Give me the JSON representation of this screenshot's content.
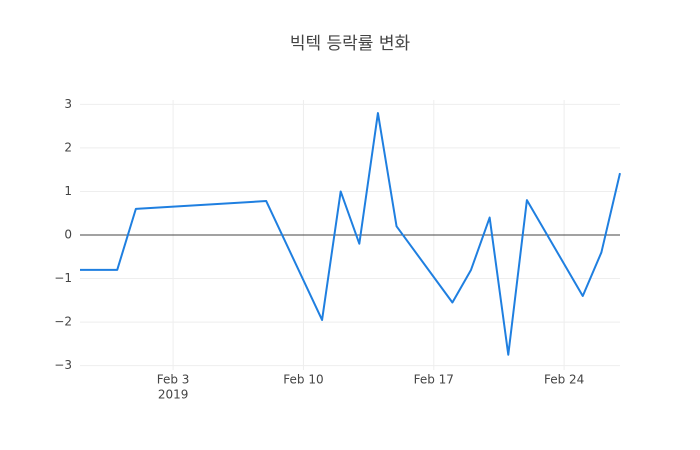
{
  "chart_data": {
    "type": "line",
    "title": "빅텍 등락률 변화",
    "x": [
      "2019-01-29",
      "2019-01-31",
      "2019-02-01",
      "2019-02-08",
      "2019-02-11",
      "2019-02-12",
      "2019-02-13",
      "2019-02-14",
      "2019-02-15",
      "2019-02-18",
      "2019-02-19",
      "2019-02-20",
      "2019-02-21",
      "2019-02-22",
      "2019-02-25",
      "2019-02-26",
      "2019-02-27"
    ],
    "values": [
      -0.8,
      -0.8,
      0.6,
      0.78,
      -1.95,
      1.0,
      -0.2,
      2.8,
      0.2,
      -1.55,
      -0.8,
      0.4,
      -2.75,
      0.8,
      -1.4,
      -0.4,
      1.42
    ],
    "color": "#1f7fe0",
    "xlim": [
      "2019-01-29",
      "2019-02-27"
    ],
    "xticks": [
      {
        "value": "2019-02-03",
        "label": "Feb 3"
      },
      {
        "value": "2019-02-10",
        "label": "Feb 10"
      },
      {
        "value": "2019-02-17",
        "label": "Feb 17"
      },
      {
        "value": "2019-02-24",
        "label": "Feb 24"
      }
    ],
    "x_year_label": "2019",
    "ylim": [
      -3.1,
      3.1
    ],
    "yticks": [
      {
        "value": -3,
        "label": "−3"
      },
      {
        "value": -2,
        "label": "−2"
      },
      {
        "value": -1,
        "label": "−1"
      },
      0,
      1,
      2,
      3
    ],
    "grid": true,
    "zeroline": true
  }
}
